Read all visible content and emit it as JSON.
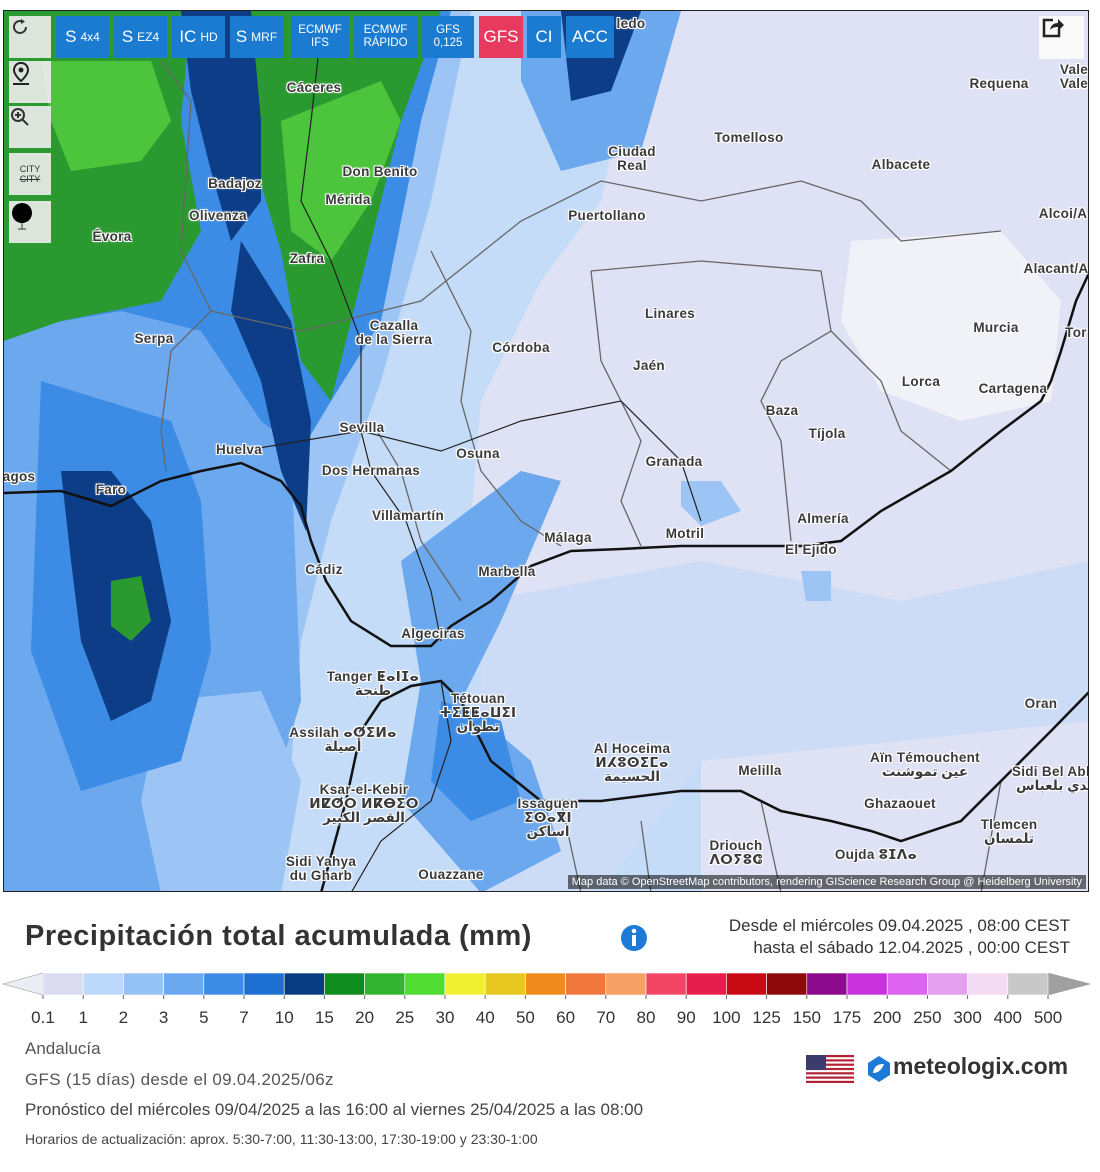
{
  "toolbar": {
    "buttons": [
      {
        "main": "S",
        "sub": "4x4"
      },
      {
        "main": "S",
        "sub": "EZ4"
      },
      {
        "main": "IC",
        "sub": "HD"
      },
      {
        "main": "S",
        "sub": "MRF"
      },
      {
        "main": "ECMWF",
        "sub": "IFS"
      },
      {
        "main": "ECMWF",
        "sub": "RÁPIDO"
      },
      {
        "main": "GFS",
        "sub": "0,125"
      },
      {
        "main": "GFS"
      },
      {
        "main": "CI"
      },
      {
        "main": "ACC"
      }
    ]
  },
  "side_controls": {
    "city": "CITY",
    "city_struck": "CITY"
  },
  "map": {
    "labels": [
      "Cáceres",
      "Tomelloso",
      "Requena",
      "Ciudad\nReal",
      "Don Benito",
      "Badajoz",
      "Albacete",
      "Mérida",
      "Olivenza",
      "Puertollano",
      "Évora",
      "Zafra",
      "Alcoi/A",
      "Alacant/A",
      "Linares",
      "Murcia",
      "Cazalla\nde la Sierra",
      "Serpa",
      "Córdoba",
      "Tor",
      "Jaén",
      "Lorca",
      "Cartagena",
      "Baza",
      "Tíjola",
      "Sevilla",
      "Huelva",
      "Osuna",
      "Granada",
      "Dos Hermanas",
      "agos",
      "Faro",
      "Villamartín",
      "Almería",
      "Motril",
      "Málaga",
      "El Ejido",
      "Cádiz",
      "Marbella",
      "Algeciras",
      "Tanger ⵟⴰⵏⵊⴰ\nطنجة",
      "Tétouan\nⵜⵉⵟⵟⴰⵡⵉⵏ\nتطوان",
      "Oran",
      "Assilah ⴰⵚⵉⵍⴰ\nأصيلة",
      "Al Hoceima\nⵍⵃⵓⵙⵉⵎⴰ\nالحسيمة",
      "Aïn Témouchent\nعين تموشنت",
      "Melilla",
      "Sidi Bel Abbès\nسيدي بلعباس",
      "Ksar-el-Kebir\nⵍⵇⵚⵔ ⵍⴽⴱⵉⵔ\nالقصر الكبير",
      "Issaguen\nⵉⵙⴰⴳⵏ\nاساكن",
      "Ghazaouet",
      "Tlemcen\nتلمسان",
      "Driouch\nⴷⵔⵢⵓⵛ",
      "Oujda ⵓⵊⴷⴰ",
      "Sidi Yahya\ndu Gharb",
      "Ouazzane",
      "Vale\nVale",
      "ledo"
    ],
    "attribution": "Map data © OpenStreetMap contributors, rendering GIScience Research Group @ Heidelberg University"
  },
  "legend": {
    "title": "Precipitación total acumulada (mm)",
    "period_from": "Desde el miércoles 09.04.2025 , 08:00 CEST",
    "period_to": "hasta el sábado 12.04.2025 , 00:00 CEST",
    "colorbar": {
      "ticks": [
        0.1,
        1,
        2,
        3,
        5,
        7,
        10,
        15,
        20,
        25,
        30,
        40,
        50,
        60,
        70,
        80,
        90,
        100,
        125,
        150,
        175,
        200,
        250,
        300,
        400,
        500
      ],
      "colors": [
        "#dcdcf0",
        "#bcd8fa",
        "#96c3f5",
        "#6aa8f0",
        "#3c8ce6",
        "#1e6fd2",
        "#0a3c82",
        "#0f8c1e",
        "#32b432",
        "#50dc32",
        "#f0f032",
        "#e6c81e",
        "#f08c1e",
        "#f0783c",
        "#f5a064",
        "#f04664",
        "#e61e50",
        "#c80a14",
        "#8c0a0a",
        "#8c0a8c",
        "#c832dc",
        "#dc64f0",
        "#e6a0f0",
        "#f5dcf5",
        "#c8c8c8"
      ],
      "under_color": "#ececf5",
      "over_color": "#a0a0a0"
    }
  },
  "footer": {
    "region": "Andalucía",
    "run": "GFS (15 días) desde el 09.04.2025/06z",
    "forecast": "Pronóstico del miércoles 09/04/2025 a las 16:00 al viernes 25/04/2025 a las 08:00",
    "updates": "Horarios de actualización: aprox. 5:30-7:00, 11:30-13:00, 17:30-19:00 y 23:30-1:00",
    "brand": "meteologix.com"
  }
}
